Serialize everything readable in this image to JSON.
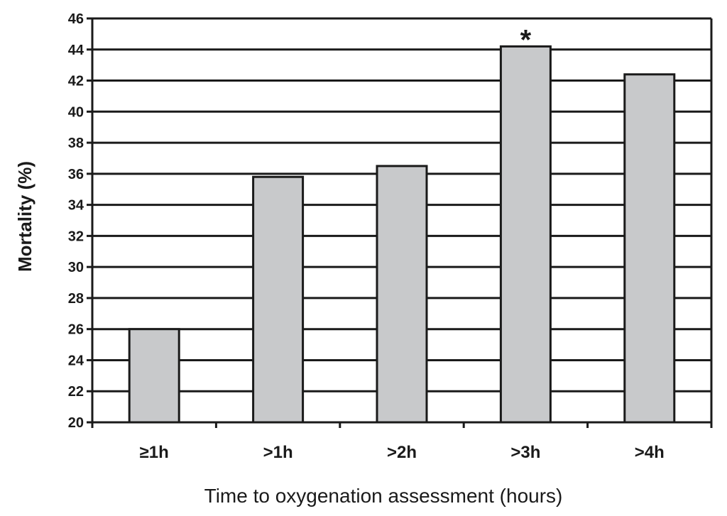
{
  "chart_data": {
    "type": "bar",
    "categories": [
      "≥1h",
      ">1h",
      ">2h",
      ">3h",
      ">4h"
    ],
    "values": [
      26.0,
      35.8,
      36.5,
      44.2,
      42.4
    ],
    "xlabel": "Time to oxygenation assessment (hours)",
    "ylabel": "Mortality (%)",
    "ylim": [
      20,
      46
    ],
    "yticks": [
      20,
      22,
      24,
      26,
      28,
      30,
      32,
      34,
      36,
      38,
      40,
      42,
      44,
      46
    ],
    "grid": true,
    "bar_color": "#c8c9cb",
    "annotations": [
      {
        "category": ">3h",
        "text": "*"
      }
    ]
  }
}
